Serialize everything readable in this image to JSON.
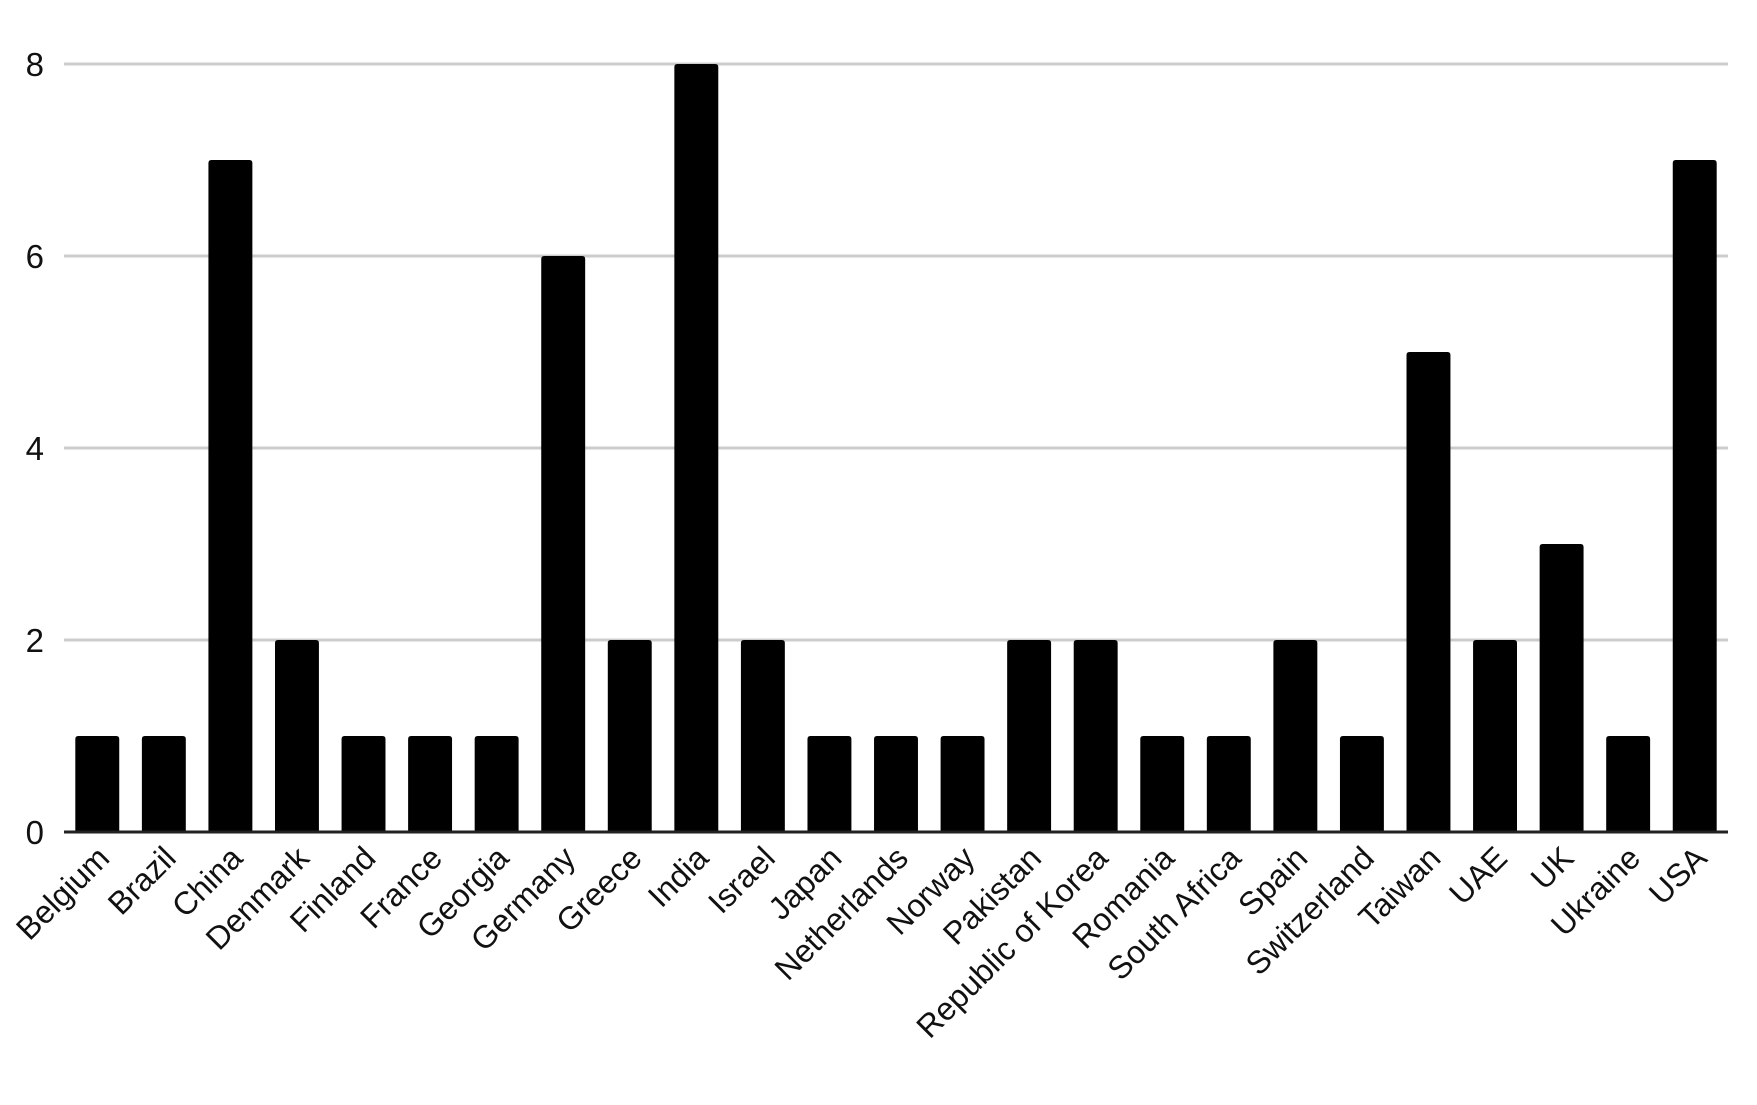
{
  "chart_data": {
    "type": "bar",
    "title": "",
    "xlabel": "",
    "ylabel": "",
    "categories": [
      "Belgium",
      "Brazil",
      "China",
      "Denmark",
      "Finland",
      "France",
      "Georgia",
      "Germany",
      "Greece",
      "India",
      "Israel",
      "Japan",
      "Netherlands",
      "Norway",
      "Pakistan",
      "Republic of Korea",
      "Romania",
      "South Africa",
      "Spain",
      "Switzerland",
      "Taiwan",
      "UAE",
      "UK",
      "Ukraine",
      "USA"
    ],
    "values": [
      1,
      1,
      7,
      2,
      1,
      1,
      1,
      6,
      2,
      8,
      2,
      1,
      1,
      1,
      2,
      2,
      1,
      1,
      2,
      1,
      5,
      2,
      3,
      1,
      7
    ],
    "ylim": [
      0,
      8
    ],
    "yticks": [
      "0",
      "2",
      "4",
      "6",
      "8"
    ],
    "grid": true,
    "legend": "none",
    "colors": {
      "bar": "#000000",
      "grid": "#cccccc",
      "axis": "#222222",
      "text": "#111111"
    }
  }
}
